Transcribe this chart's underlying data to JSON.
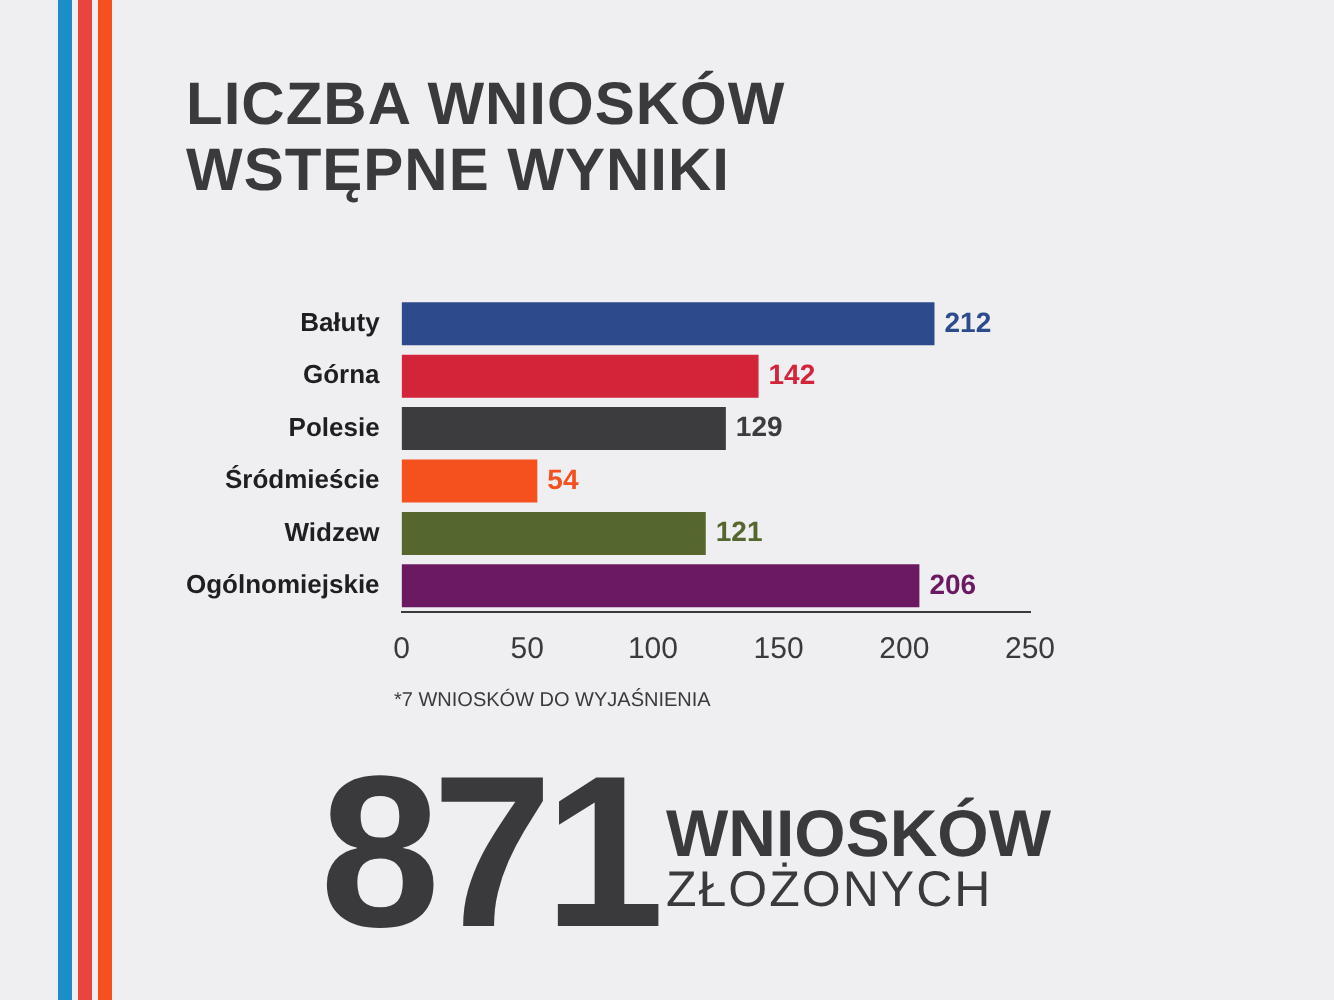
{
  "chart_data": {
    "type": "bar",
    "orientation": "horizontal",
    "title": "LICZBA WNIOSKÓW",
    "subtitle": "WSTĘPNE WYNIKI",
    "categories": [
      "Bałuty",
      "Górna",
      "Polesie",
      "Śródmieście",
      "Widzew",
      "Ogólnomiejskie"
    ],
    "values": [
      212,
      142,
      129,
      54,
      121,
      206
    ],
    "colors": [
      "#2c4a8c",
      "#d3253a",
      "#3c3c3e",
      "#f4511e",
      "#55672e",
      "#6b1a62"
    ],
    "xlim": [
      0,
      250
    ],
    "xticks": [
      0,
      50,
      100,
      150,
      200,
      250
    ],
    "grid": false,
    "legend": false,
    "data_labels": true,
    "annotations": [
      "*7 WNIOSKÓW DO WYJAŚNIENIA",
      "871",
      "WNIOSKÓW",
      "ZŁOŻONYCH"
    ]
  }
}
